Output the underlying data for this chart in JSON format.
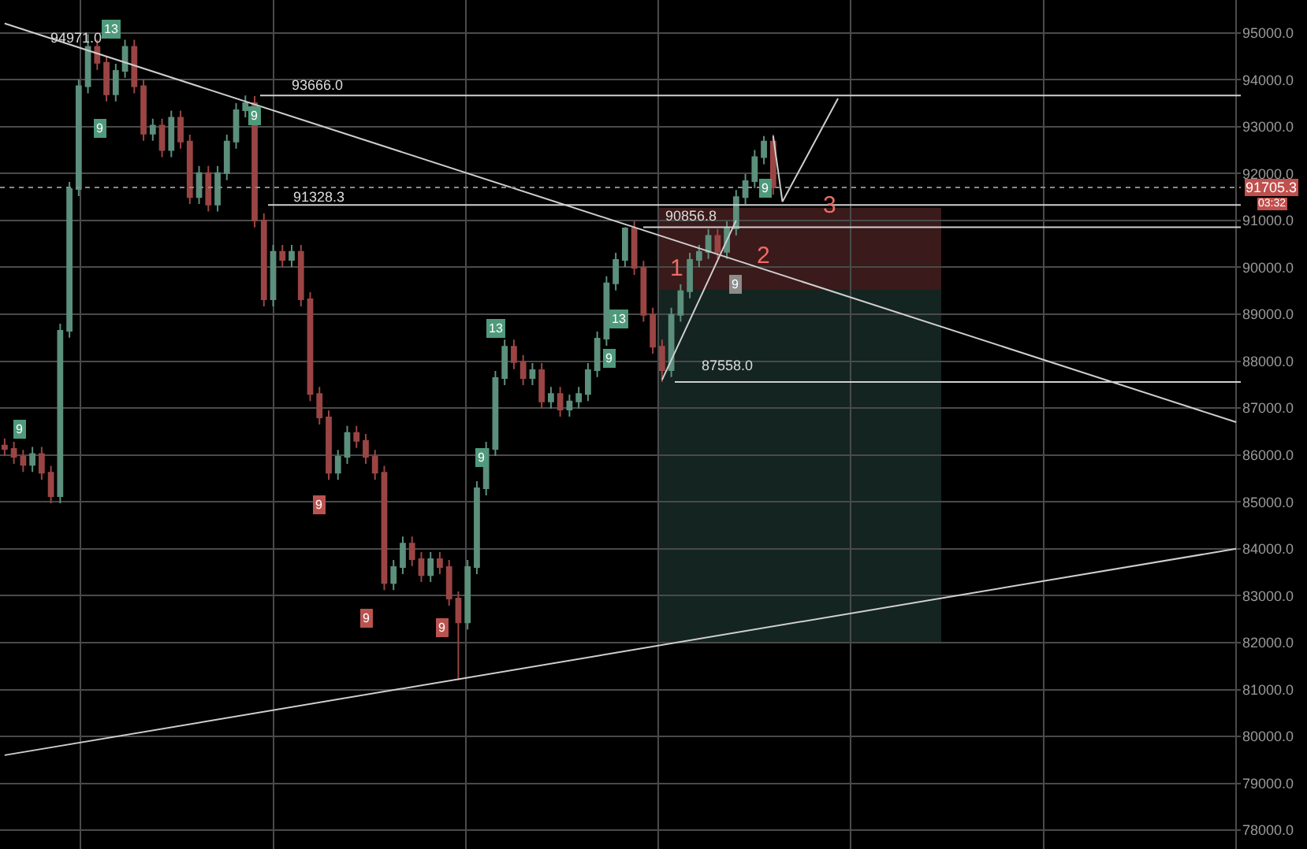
{
  "chart_data": {
    "type": "candlestick",
    "categories": [
      null,
      null,
      null,
      null,
      null,
      null,
      null,
      null,
      null,
      null,
      null,
      null,
      null,
      null,
      null,
      null,
      null,
      null,
      null,
      null,
      null,
      null,
      null,
      null,
      null,
      null,
      null,
      null,
      null,
      null,
      null,
      null,
      null,
      null,
      null,
      null,
      null,
      null,
      null,
      null,
      null,
      null,
      null,
      null,
      null,
      null,
      null,
      null,
      null,
      null,
      null,
      null,
      null,
      null,
      null,
      null,
      null,
      null,
      null,
      null,
      null,
      null,
      null,
      null,
      null,
      null,
      null,
      null,
      null,
      null,
      null,
      null,
      null,
      null,
      null,
      null,
      null,
      null,
      null,
      null,
      null,
      null,
      null,
      null,
      null,
      null,
      null,
      null,
      null,
      null,
      null,
      null,
      null,
      null,
      null,
      null,
      null,
      null,
      null,
      null,
      null,
      null,
      null,
      null,
      null,
      null,
      null,
      null,
      null,
      null,
      null,
      null,
      null,
      null,
      null,
      null,
      null,
      null,
      null,
      null,
      null,
      null,
      null,
      null,
      null,
      null,
      null,
      null,
      null,
      null,
      null,
      null,
      null,
      null
    ],
    "ohlc": [
      [
        86200,
        86350,
        85980,
        86130
      ],
      [
        86130,
        86280,
        85810,
        85960
      ],
      [
        85960,
        86110,
        85640,
        85790
      ],
      [
        85790,
        86170,
        85640,
        86020
      ],
      [
        86020,
        86170,
        85470,
        85620
      ],
      [
        85620,
        85770,
        84970,
        85120
      ],
      [
        85120,
        88800,
        84970,
        88650
      ],
      [
        88650,
        91820,
        88500,
        91670
      ],
      [
        91670,
        94010,
        91520,
        93860
      ],
      [
        93860,
        94971,
        93710,
        94700
      ],
      [
        94700,
        94850,
        94210,
        94360
      ],
      [
        94360,
        94510,
        93540,
        93690
      ],
      [
        93690,
        94340,
        93540,
        94190
      ],
      [
        94190,
        94850,
        94040,
        94700
      ],
      [
        94700,
        94850,
        93710,
        93860
      ],
      [
        93860,
        94010,
        92700,
        92850
      ],
      [
        92850,
        93170,
        92700,
        93020
      ],
      [
        93020,
        93170,
        92350,
        92500
      ],
      [
        92500,
        93340,
        92350,
        93190
      ],
      [
        93190,
        93340,
        92530,
        92680
      ],
      [
        92680,
        92830,
        91350,
        91500
      ],
      [
        91500,
        92160,
        91350,
        92010
      ],
      [
        92010,
        92160,
        91190,
        91340
      ],
      [
        91340,
        92160,
        91190,
        92010
      ],
      [
        92010,
        92830,
        91860,
        92680
      ],
      [
        92680,
        93500,
        92530,
        93350
      ],
      [
        93350,
        93666,
        93200,
        93500
      ],
      [
        93500,
        93650,
        90850,
        91000
      ],
      [
        91000,
        91150,
        89170,
        89320
      ],
      [
        89320,
        90480,
        89170,
        90330
      ],
      [
        90330,
        90480,
        90010,
        90160
      ],
      [
        90160,
        90480,
        90010,
        90330
      ],
      [
        90330,
        90480,
        89170,
        89320
      ],
      [
        89320,
        89470,
        87150,
        87300
      ],
      [
        87300,
        87450,
        86650,
        86800
      ],
      [
        86800,
        86950,
        85470,
        85620
      ],
      [
        85620,
        86110,
        85470,
        85960
      ],
      [
        85960,
        86620,
        85810,
        86470
      ],
      [
        86470,
        86620,
        86150,
        86300
      ],
      [
        86300,
        86450,
        85810,
        85960
      ],
      [
        85960,
        86110,
        85470,
        85620
      ],
      [
        85620,
        85770,
        83120,
        83270
      ],
      [
        83270,
        83760,
        83120,
        83610
      ],
      [
        83610,
        84260,
        83460,
        84110
      ],
      [
        84110,
        84260,
        83630,
        83780
      ],
      [
        83780,
        83930,
        83290,
        83440
      ],
      [
        83440,
        83930,
        83290,
        83780
      ],
      [
        83780,
        83930,
        83460,
        83610
      ],
      [
        83610,
        83760,
        82790,
        82940
      ],
      [
        82940,
        83090,
        81200,
        82430
      ],
      [
        82430,
        83760,
        82280,
        83610
      ],
      [
        83610,
        85440,
        83460,
        85290
      ],
      [
        85290,
        86280,
        85140,
        86130
      ],
      [
        86130,
        87790,
        85980,
        87640
      ],
      [
        87640,
        88460,
        87490,
        88310
      ],
      [
        88310,
        88460,
        87830,
        87980
      ],
      [
        87980,
        88130,
        87490,
        87640
      ],
      [
        87640,
        87960,
        87490,
        87810
      ],
      [
        87810,
        87960,
        86990,
        87140
      ],
      [
        87140,
        87450,
        86990,
        87300
      ],
      [
        87300,
        87450,
        86820,
        86970
      ],
      [
        86970,
        87290,
        86820,
        87140
      ],
      [
        87140,
        87450,
        86990,
        87300
      ],
      [
        87300,
        87960,
        87150,
        87810
      ],
      [
        87810,
        88630,
        87660,
        88480
      ],
      [
        88480,
        89810,
        88330,
        89660
      ],
      [
        89660,
        90310,
        89510,
        90160
      ],
      [
        90160,
        90856.8,
        90010,
        90830
      ],
      [
        90830,
        90980,
        89840,
        89990
      ],
      [
        89990,
        90140,
        88840,
        88990
      ],
      [
        88990,
        89140,
        88160,
        88310
      ],
      [
        88310,
        88460,
        87558,
        87810
      ],
      [
        87810,
        89140,
        87660,
        88990
      ],
      [
        88990,
        89640,
        88840,
        89490
      ],
      [
        89490,
        90310,
        89340,
        90160
      ],
      [
        90160,
        90480,
        90010,
        90330
      ],
      [
        90330,
        90820,
        90180,
        90670
      ],
      [
        90670,
        90820,
        90180,
        90330
      ],
      [
        90330,
        90980,
        90180,
        90830
      ],
      [
        90830,
        91650,
        90680,
        91500
      ],
      [
        91500,
        91990,
        91350,
        91840
      ],
      [
        91840,
        92500,
        91690,
        92350
      ],
      [
        92350,
        92800,
        92200,
        92680
      ],
      [
        92680,
        92830,
        91550,
        91705.3
      ],
      null,
      null,
      null,
      null,
      null,
      null,
      null,
      null,
      null,
      null,
      null,
      null,
      null,
      null,
      null,
      null,
      null,
      null,
      null,
      null,
      null,
      null,
      null,
      null,
      null,
      null,
      null,
      null,
      null,
      null,
      null,
      null,
      null,
      null,
      null,
      null,
      null,
      null,
      null,
      null,
      null,
      null,
      null,
      null,
      null,
      null,
      null,
      null,
      null,
      null
    ],
    "series": [
      {
        "type": "line",
        "color": "#cfcfcf",
        "values": [
          95200,
          null,
          null,
          null,
          null,
          null,
          null,
          null,
          null,
          null,
          null,
          null,
          null,
          null,
          null,
          null,
          null,
          null,
          null,
          null,
          null,
          null,
          null,
          null,
          null,
          null,
          null,
          null,
          null,
          null,
          null,
          null,
          null,
          null,
          null,
          null,
          null,
          null,
          null,
          null,
          null,
          null,
          null,
          null,
          null,
          null,
          null,
          null,
          null,
          null,
          null,
          null,
          null,
          null,
          null,
          null,
          null,
          null,
          null,
          null,
          null,
          null,
          null,
          null,
          null,
          null,
          null,
          null,
          null,
          null,
          null,
          null,
          null,
          null,
          null,
          null,
          null,
          null,
          null,
          null,
          null,
          null,
          null,
          null,
          null,
          null,
          null,
          null,
          null,
          null,
          null,
          null,
          null,
          null,
          null,
          null,
          null,
          null,
          null,
          null,
          null,
          null,
          null,
          null,
          null,
          null,
          null,
          null,
          null,
          null,
          null,
          null,
          null,
          null,
          null,
          null,
          null,
          null,
          null,
          null,
          null,
          null,
          null,
          null,
          null,
          null,
          null,
          null,
          null,
          null,
          null,
          null,
          null,
          86700
        ]
      },
      {
        "type": "line",
        "color": "#cfcfcf",
        "values": [
          79600,
          null,
          null,
          null,
          null,
          null,
          null,
          null,
          null,
          null,
          null,
          null,
          null,
          null,
          null,
          null,
          null,
          null,
          null,
          null,
          null,
          null,
          null,
          null,
          null,
          null,
          null,
          null,
          null,
          null,
          null,
          null,
          null,
          null,
          null,
          null,
          null,
          null,
          null,
          null,
          null,
          null,
          null,
          null,
          null,
          null,
          null,
          null,
          null,
          null,
          null,
          null,
          null,
          null,
          null,
          null,
          null,
          null,
          null,
          null,
          null,
          null,
          null,
          null,
          null,
          null,
          null,
          null,
          null,
          null,
          null,
          null,
          null,
          null,
          null,
          null,
          null,
          null,
          null,
          null,
          null,
          null,
          null,
          null,
          null,
          null,
          null,
          null,
          null,
          null,
          null,
          null,
          null,
          null,
          null,
          null,
          null,
          null,
          null,
          null,
          null,
          null,
          null,
          null,
          null,
          null,
          null,
          null,
          null,
          null,
          null,
          null,
          null,
          null,
          null,
          null,
          null,
          null,
          null,
          null,
          null,
          null,
          null,
          null,
          null,
          null,
          null,
          null,
          null,
          null,
          null,
          null,
          null,
          84000
        ]
      },
      {
        "type": "line",
        "color": "#cfcfcf",
        "values": [
          null,
          null,
          null,
          null,
          null,
          null,
          null,
          null,
          null,
          null,
          null,
          null,
          null,
          null,
          null,
          null,
          null,
          null,
          null,
          null,
          null,
          null,
          null,
          null,
          null,
          null,
          null,
          null,
          null,
          null,
          null,
          null,
          null,
          null,
          null,
          null,
          null,
          null,
          null,
          null,
          null,
          null,
          null,
          null,
          null,
          null,
          null,
          null,
          null,
          null,
          null,
          null,
          null,
          null,
          null,
          null,
          null,
          null,
          null,
          null,
          null,
          null,
          null,
          null,
          null,
          null,
          null,
          null,
          null,
          null,
          null,
          87600,
          null,
          null,
          null,
          null,
          null,
          null,
          null,
          91000,
          null,
          null,
          null,
          null,
          null,
          null,
          null,
          null,
          null,
          null,
          null,
          null,
          null,
          null,
          null,
          null,
          null,
          null,
          null,
          null,
          null,
          null,
          null,
          null,
          null,
          null,
          null,
          null,
          null,
          null,
          null,
          null,
          null,
          null,
          null,
          null,
          null,
          null,
          null,
          null,
          null,
          null,
          null,
          null,
          null,
          null,
          null,
          null,
          null,
          null,
          null,
          null,
          null,
          null
        ]
      },
      {
        "type": "line",
        "color": "#cfcfcf",
        "values": [
          null,
          null,
          null,
          null,
          null,
          null,
          null,
          null,
          null,
          null,
          null,
          null,
          null,
          null,
          null,
          null,
          null,
          null,
          null,
          null,
          null,
          null,
          null,
          null,
          null,
          null,
          null,
          null,
          null,
          null,
          null,
          null,
          null,
          null,
          null,
          null,
          null,
          null,
          null,
          null,
          null,
          null,
          null,
          null,
          null,
          null,
          null,
          null,
          null,
          null,
          null,
          null,
          null,
          null,
          null,
          null,
          null,
          null,
          null,
          null,
          null,
          null,
          null,
          null,
          null,
          null,
          null,
          null,
          null,
          null,
          null,
          null,
          null,
          null,
          null,
          null,
          null,
          null,
          null,
          null,
          null,
          null,
          null,
          92800,
          91400,
          null,
          null,
          null,
          null,
          null,
          93600,
          null,
          null,
          null,
          null,
          null,
          null,
          null,
          null,
          null,
          null,
          null,
          null,
          null,
          null,
          null,
          null,
          null,
          null,
          null,
          null,
          null,
          null,
          null,
          null,
          null,
          null,
          null,
          null,
          null,
          null,
          null,
          null,
          null,
          null,
          null,
          null,
          null,
          null,
          null,
          null,
          null,
          null,
          null
        ]
      }
    ],
    "ref_lines": [
      {
        "axis": "y",
        "value": 93666,
        "label": "93666.0",
        "color": "#d0d0d0"
      },
      {
        "axis": "y",
        "value": 91328.3,
        "label": "91328.3",
        "color": "#d0d0d0"
      },
      {
        "axis": "y",
        "value": 90856.8,
        "label": "90856.8",
        "color": "#d0d0d0"
      },
      {
        "axis": "y",
        "value": 87558,
        "label": "87558.0",
        "color": "#d0d0d0"
      },
      {
        "axis": "y",
        "value": 91705.3,
        "label": "91705.3",
        "color": "#8a8a8a",
        "line_style": "dotted"
      }
    ],
    "bands": [
      {
        "axis": "y",
        "from": 89520,
        "to": 91270,
        "color": "#3a1a1a"
      },
      {
        "axis": "y",
        "from": 82000,
        "to": 89520,
        "color": "#142420"
      }
    ],
    "annotations": [
      "94971.0",
      "03:32",
      "1",
      "2",
      "3",
      "9",
      "13",
      "9",
      "9",
      "9",
      "9",
      "9",
      "13",
      "9",
      "13",
      "9",
      "9",
      "9"
    ],
    "ylim": [
      77600,
      95700
    ],
    "yticks": [
      {
        "value": 78000,
        "label": "78000.0"
      },
      {
        "value": 79000,
        "label": "79000.0"
      },
      {
        "value": 80000,
        "label": "80000.0"
      },
      {
        "value": 81000,
        "label": "81000.0"
      },
      {
        "value": 82000,
        "label": "82000.0"
      },
      {
        "value": 83000,
        "label": "83000.0"
      },
      {
        "value": 84000,
        "label": "84000.0"
      },
      {
        "value": 85000,
        "label": "85000.0"
      },
      {
        "value": 86000,
        "label": "86000.0"
      },
      {
        "value": 87000,
        "label": "87000.0"
      },
      {
        "value": 88000,
        "label": "88000.0"
      },
      {
        "value": 89000,
        "label": "89000.0"
      },
      {
        "value": 90000,
        "label": "90000.0"
      },
      {
        "value": 91000,
        "label": "91000.0"
      },
      {
        "value": 92000,
        "label": "92000.0"
      },
      {
        "value": 93000,
        "label": "93000.0"
      },
      {
        "value": 94000,
        "label": "94000.0"
      },
      {
        "value": 95000,
        "label": "95000.0"
      }
    ],
    "grid": true
  }
}
